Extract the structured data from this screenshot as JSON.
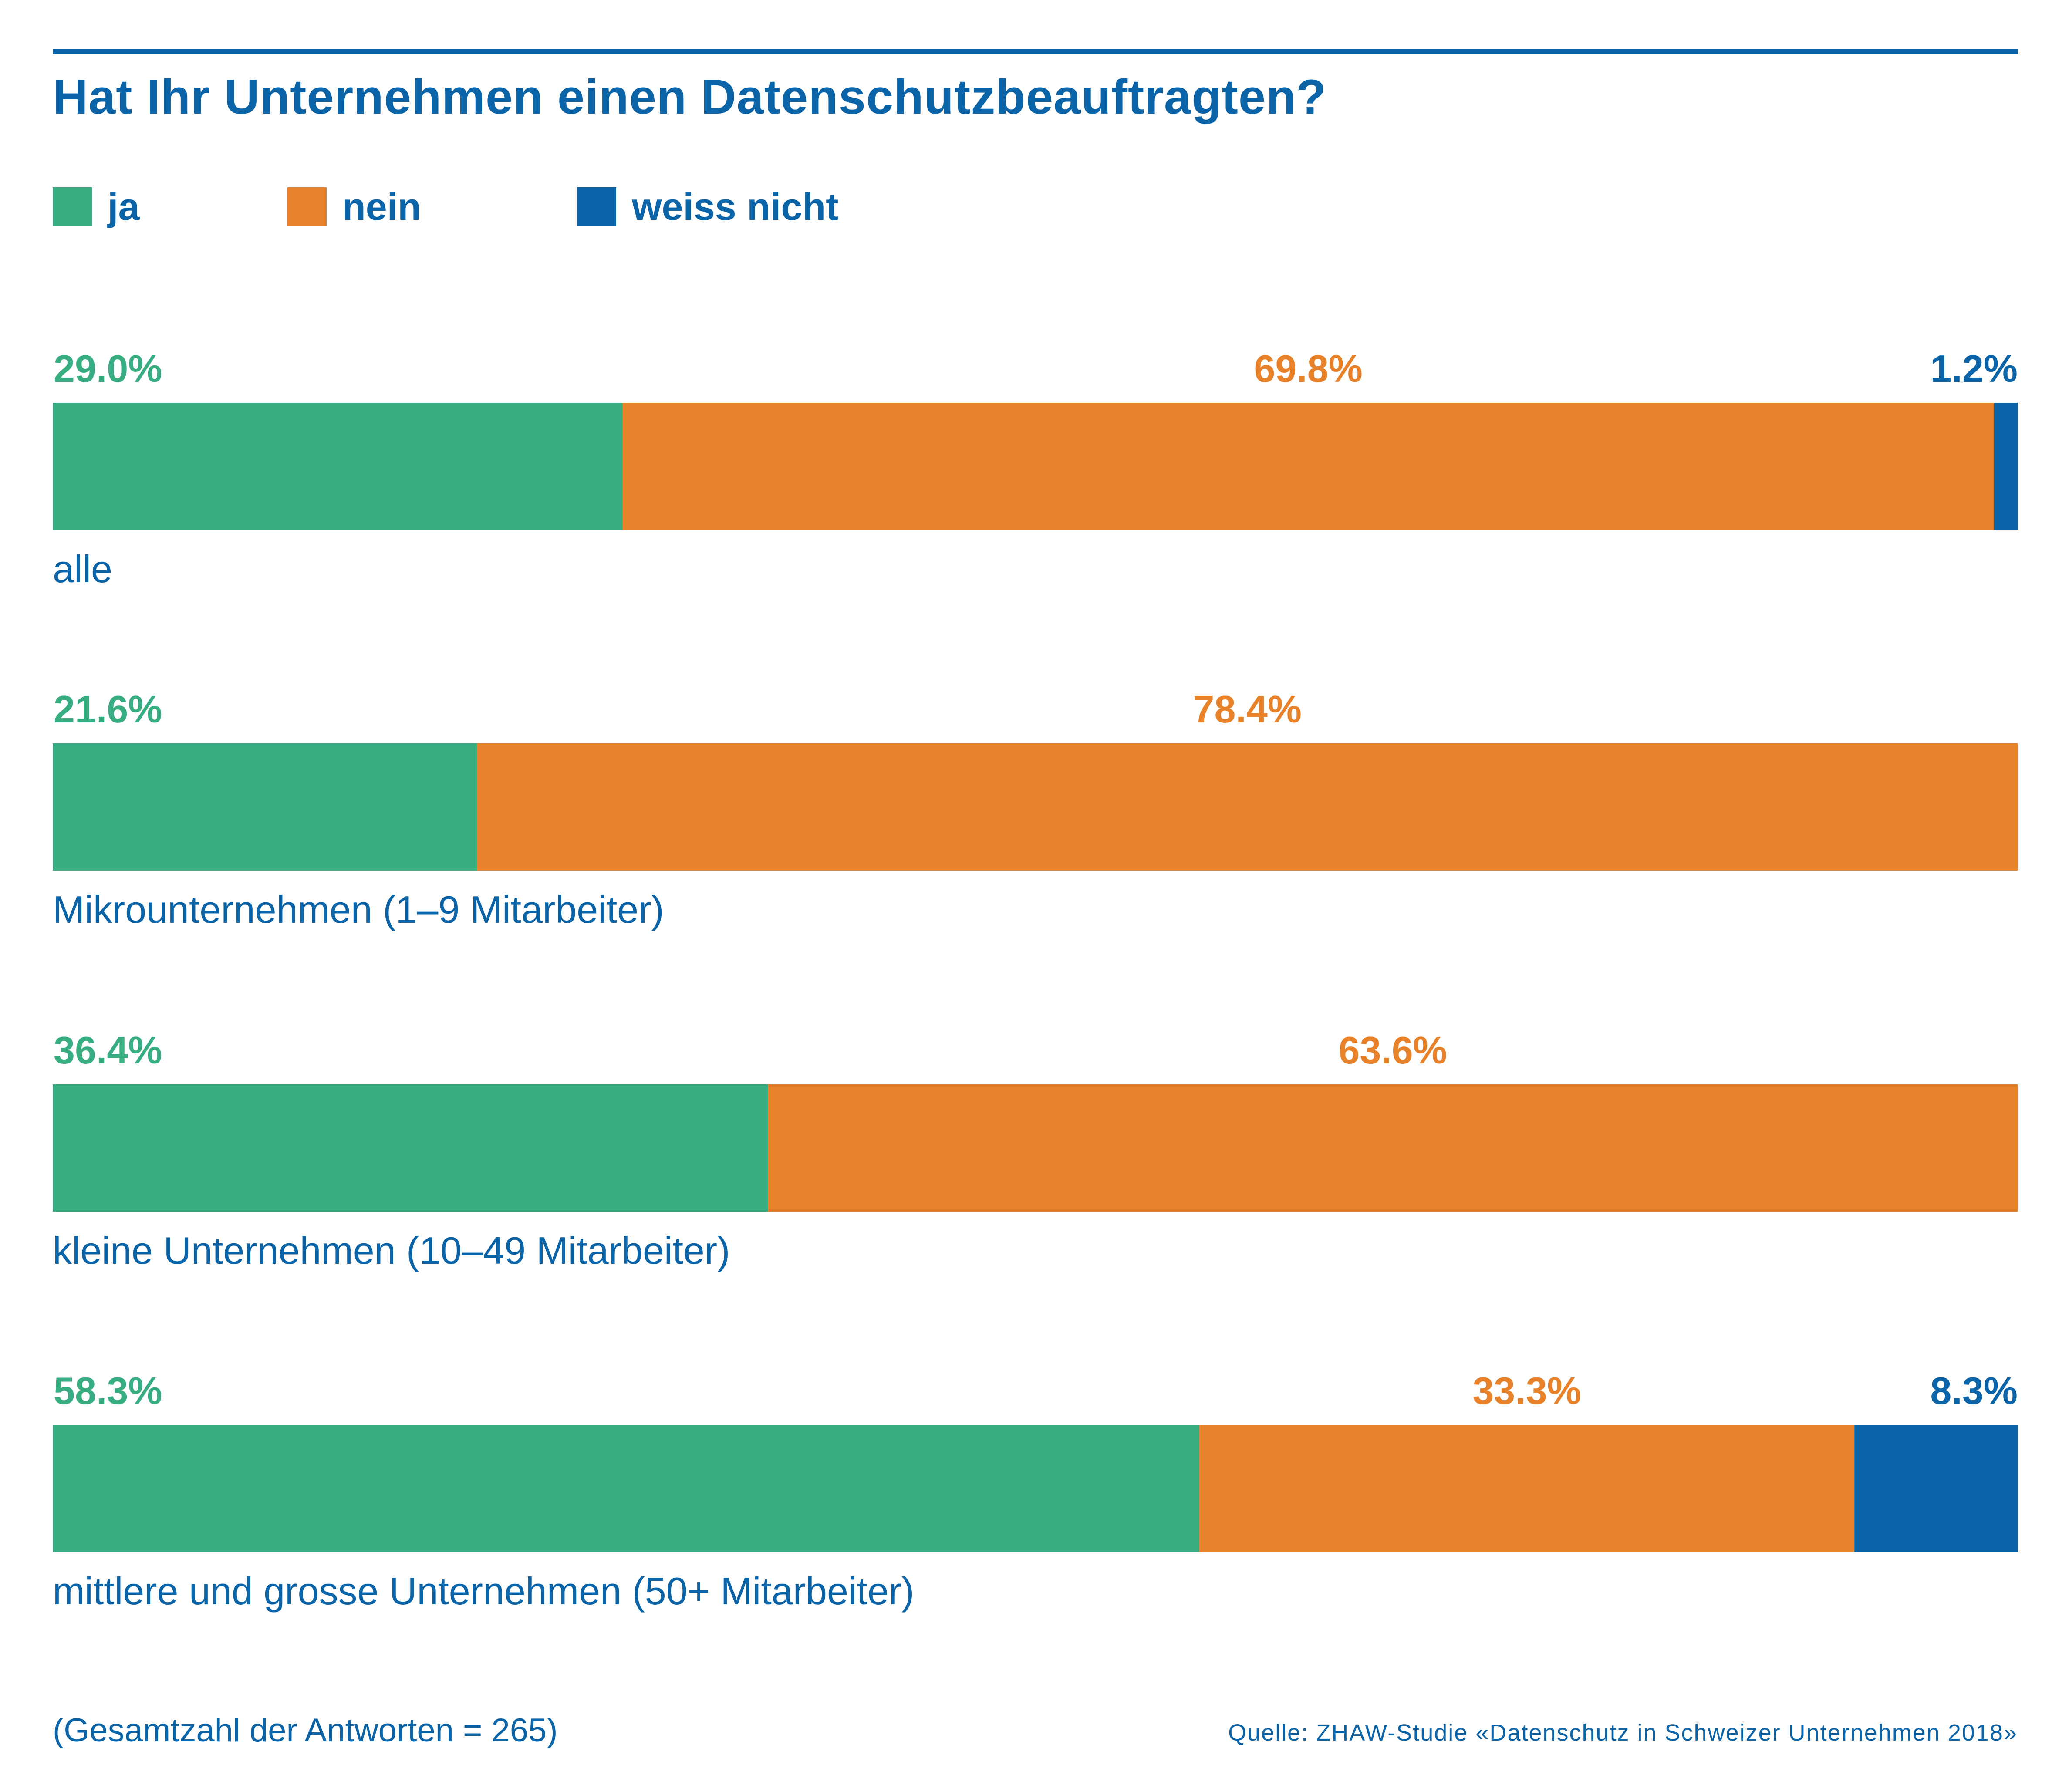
{
  "chart_data": {
    "type": "bar",
    "orientation": "horizontal",
    "stacked": true,
    "title": "Hat Ihr Unternehmen einen Datenschutzbeauftragten?",
    "legend_position": "top-left",
    "grid": false,
    "categories": [
      "alle",
      "Mikrounternehmen (1–9 Mitarbeiter)",
      "kleine Unternehmen (10–49 Mitarbeiter)",
      "mittlere und grosse Unternehmen (50+ Mitarbeiter)"
    ],
    "series": [
      {
        "name": "ja",
        "color": "#38ad81",
        "values": [
          29.0,
          21.6,
          36.4,
          58.3
        ],
        "labels": [
          "29.0%",
          "21.6%",
          "36.4%",
          "58.3%"
        ]
      },
      {
        "name": "nein",
        "color": "#e8822a",
        "values": [
          69.8,
          78.4,
          63.6,
          33.3
        ],
        "labels": [
          "69.8%",
          "78.4%",
          "63.6%",
          "33.3%"
        ]
      },
      {
        "name": "weiss nicht",
        "color": "#0b64a8",
        "values": [
          1.2,
          0,
          0,
          8.3
        ],
        "labels": [
          "1.2%",
          "",
          "",
          "8.3%"
        ]
      }
    ],
    "footnote": "(Gesamtzahl der Antworten = 265)",
    "source": "Quelle: ZHAW-Studie «Datenschutz in Schweizer Unternehmen 2018»"
  },
  "colors": {
    "text": "#0b64a8",
    "rule": "#0b64a8"
  }
}
